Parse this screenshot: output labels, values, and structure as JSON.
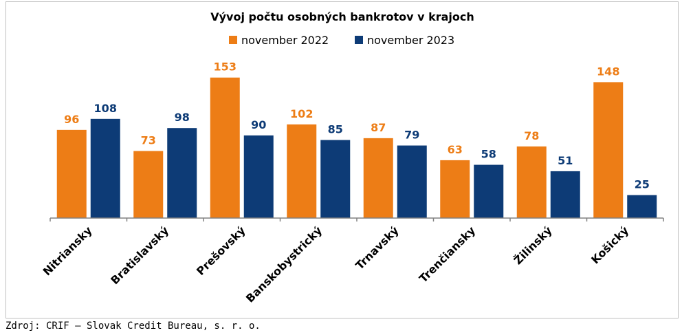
{
  "chart_data": {
    "type": "bar",
    "title": "Vývoj počtu osobných bankrotov v krajoch",
    "categories": [
      "Nitriansky",
      "Bratislavský",
      "Prešovský",
      "Banskobystrický",
      "Trnavský",
      "Trenčiansky",
      "Žilinský",
      "Košický"
    ],
    "series": [
      {
        "name": "november 2022",
        "color": "#ED7D16",
        "values": [
          96,
          73,
          153,
          102,
          87,
          63,
          78,
          148
        ]
      },
      {
        "name": "november 2023",
        "color": "#0D3B76",
        "values": [
          108,
          98,
          90,
          85,
          79,
          58,
          51,
          25
        ]
      }
    ],
    "ylim": [
      0,
      160
    ],
    "legend_position": "top",
    "grid": false
  },
  "source": "Zdroj: CRIF – Slovak Credit Bureau, s. r. o."
}
